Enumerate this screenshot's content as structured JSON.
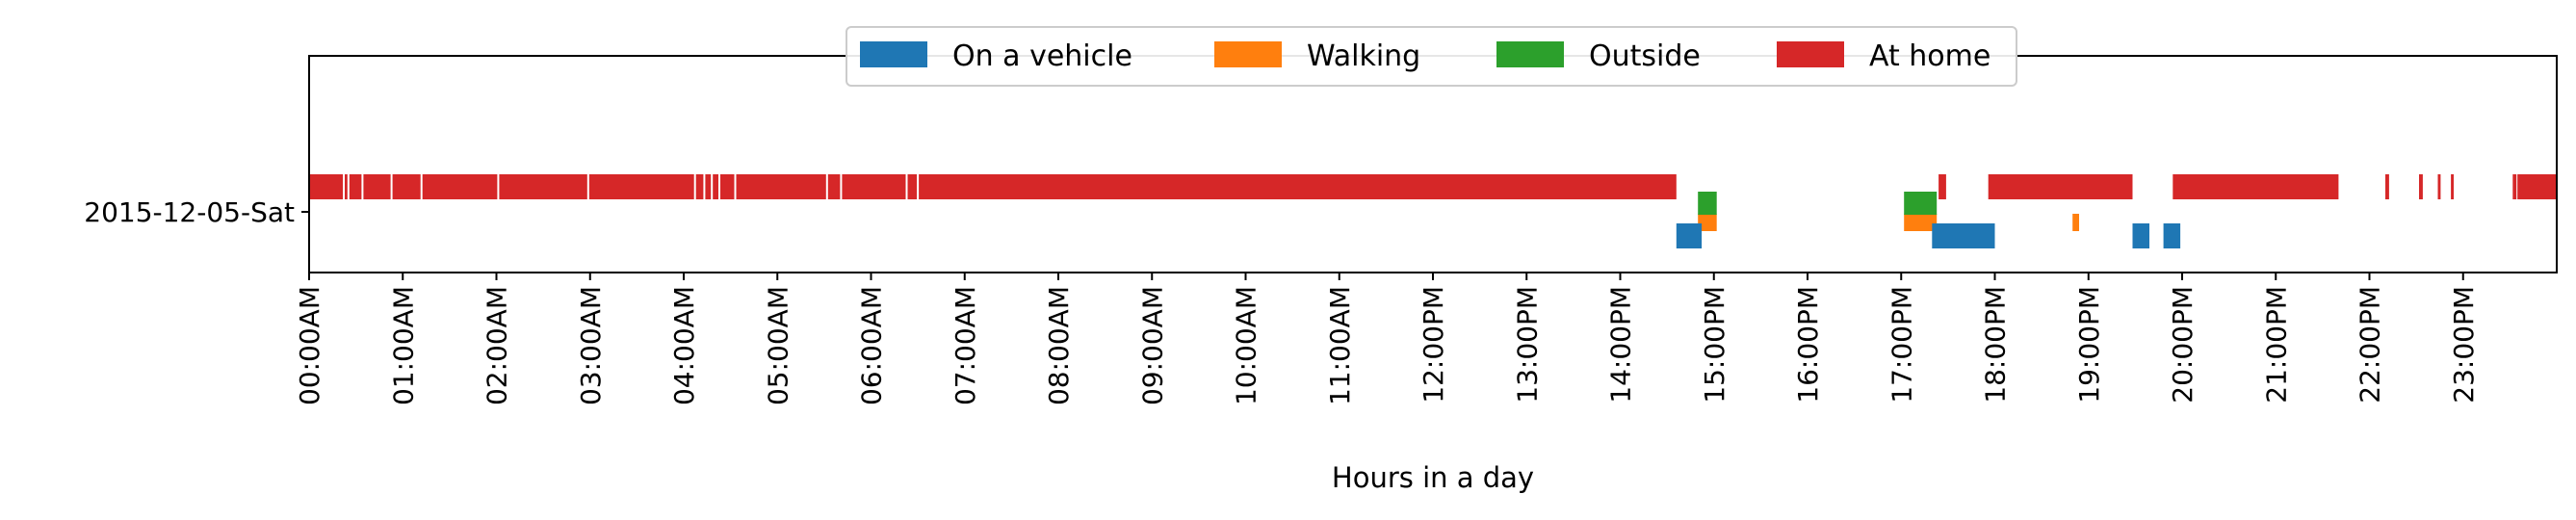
{
  "chart_data": {
    "type": "timeline",
    "xlabel": "Hours in a day",
    "xlim": [
      0,
      24
    ],
    "row_label": "2015-12-05-Sat",
    "x_tick_labels": [
      "00:00AM",
      "01:00AM",
      "02:00AM",
      "03:00AM",
      "04:00AM",
      "05:00AM",
      "06:00AM",
      "07:00AM",
      "08:00AM",
      "09:00AM",
      "10:00AM",
      "11:00AM",
      "12:00PM",
      "13:00PM",
      "14:00PM",
      "15:00PM",
      "16:00PM",
      "17:00PM",
      "18:00PM",
      "19:00PM",
      "20:00PM",
      "21:00PM",
      "22:00PM",
      "23:00PM"
    ],
    "series": [
      {
        "name": "On a vehicle",
        "color": "#1f77b4",
        "intervals": [
          [
            14.6,
            14.87
          ],
          [
            17.33,
            18.0
          ],
          [
            19.47,
            19.65
          ],
          [
            19.8,
            19.98
          ]
        ]
      },
      {
        "name": "Walking",
        "color": "#ff7f0e",
        "intervals": [
          [
            14.83,
            15.03
          ],
          [
            17.03,
            17.38
          ],
          [
            18.83,
            18.9
          ]
        ]
      },
      {
        "name": "Outside",
        "color": "#2ca02c",
        "intervals": [
          [
            14.83,
            15.03
          ],
          [
            17.03,
            17.38
          ]
        ]
      },
      {
        "name": "At home",
        "color": "#d62728",
        "intervals": [
          [
            0.0,
            14.6
          ],
          [
            17.4,
            17.48
          ],
          [
            17.93,
            19.47
          ],
          [
            19.9,
            21.67
          ],
          [
            22.17,
            22.21
          ],
          [
            22.53,
            22.57
          ],
          [
            22.73,
            22.76
          ],
          [
            22.87,
            22.9
          ],
          [
            23.53,
            23.57
          ],
          [
            23.58,
            24.0
          ]
        ],
        "gaps": [
          0.37,
          0.42,
          0.57,
          0.88,
          1.2,
          2.02,
          2.98,
          4.12,
          4.22,
          4.3,
          4.38,
          4.55,
          5.53,
          5.68,
          6.38,
          6.5
        ]
      }
    ],
    "legend_position": "upper center"
  }
}
